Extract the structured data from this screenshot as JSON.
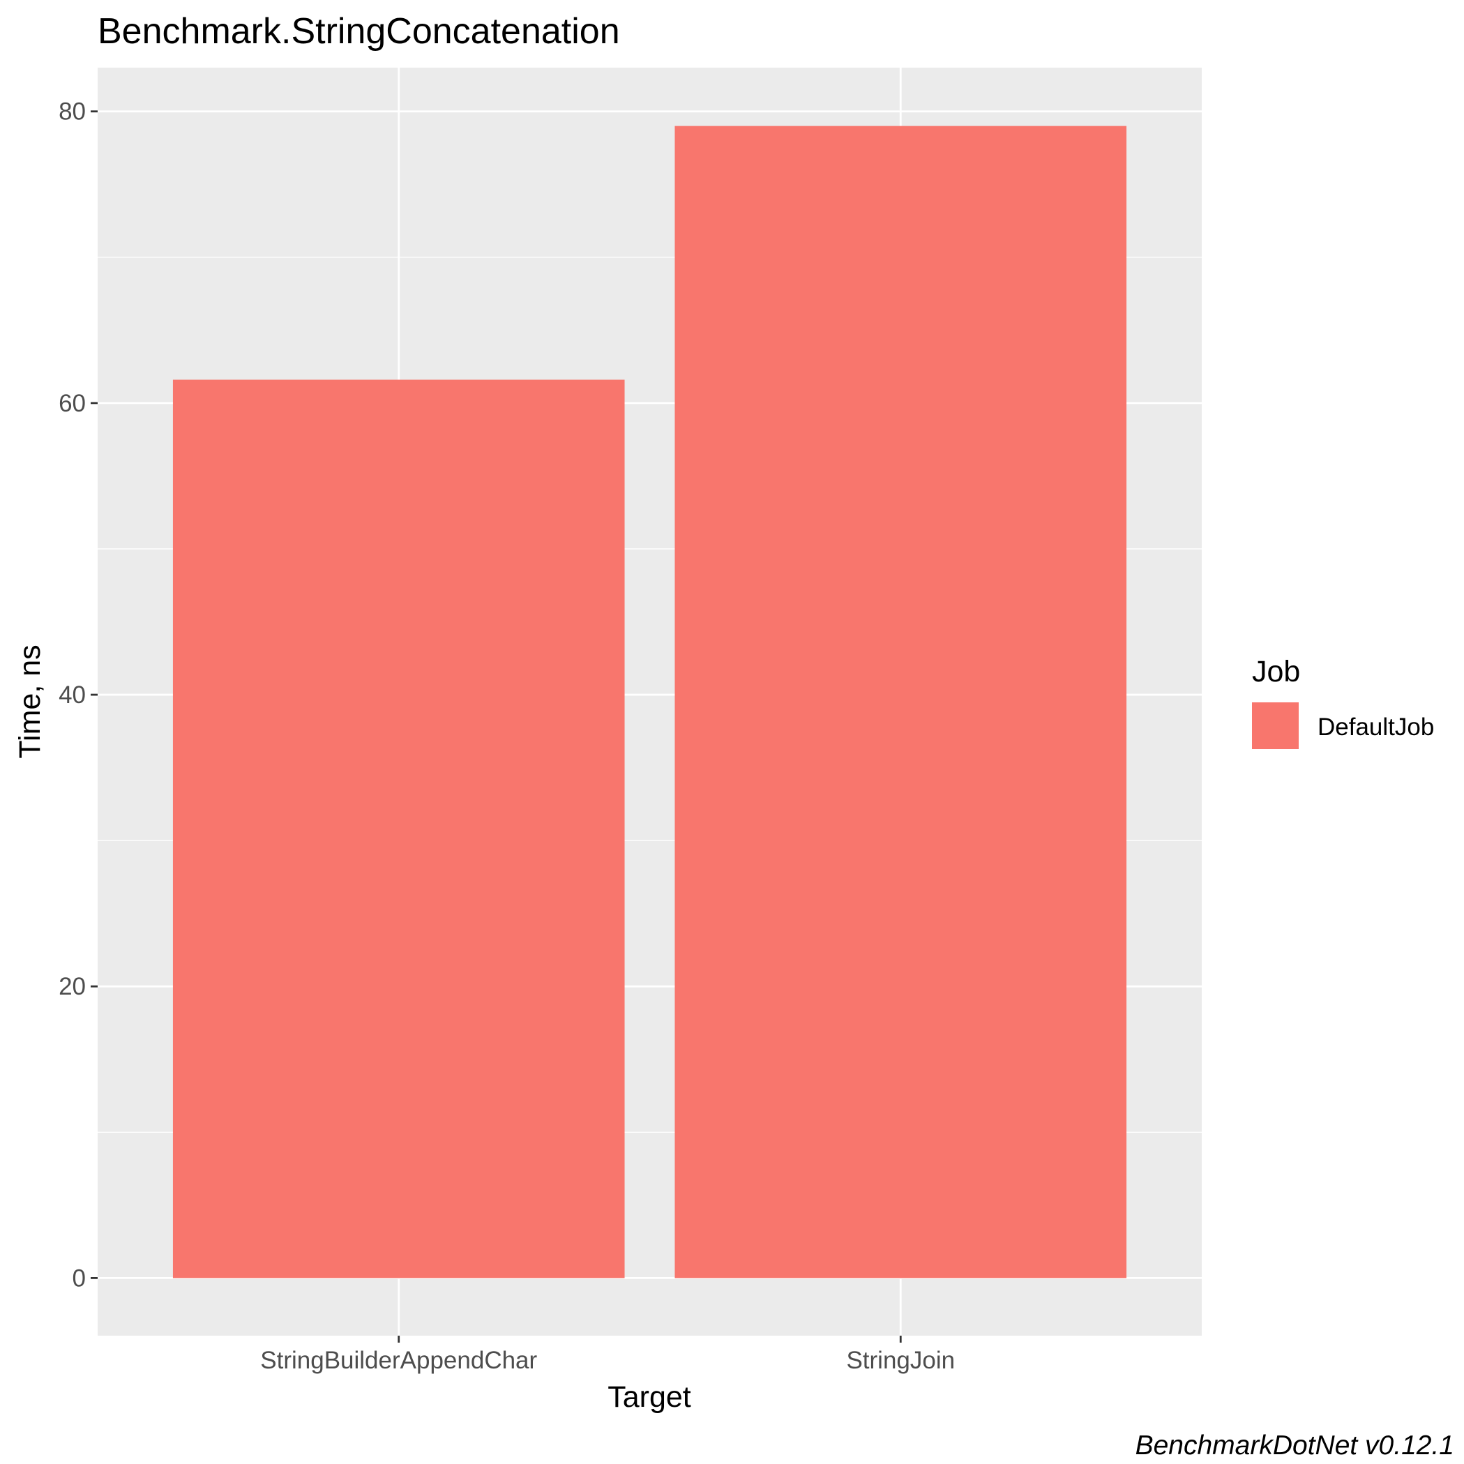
{
  "chart_data": {
    "type": "bar",
    "title": "Benchmark.StringConcatenation",
    "xlabel": "Target",
    "ylabel": "Time, ns",
    "categories": [
      "StringBuilderAppendChar",
      "StringJoin"
    ],
    "series": [
      {
        "name": "DefaultJob",
        "values": [
          61.6,
          79.0
        ]
      }
    ],
    "ylim": [
      -3.95,
      83.0
    ],
    "yticks": [
      0,
      20,
      40,
      60,
      80
    ],
    "ytick_labels": [
      "0",
      "20",
      "40",
      "60",
      "80"
    ],
    "grid": true,
    "legend": {
      "title": "Job",
      "position": "right"
    },
    "caption": "BenchmarkDotNet v0.12.1"
  },
  "colors": {
    "bar_fill": "#F8766D",
    "panel_background": "#EBEBEB",
    "grid_line": "#FFFFFF",
    "tick_mark": "#333333",
    "tick_text": "#4D4D4D"
  }
}
